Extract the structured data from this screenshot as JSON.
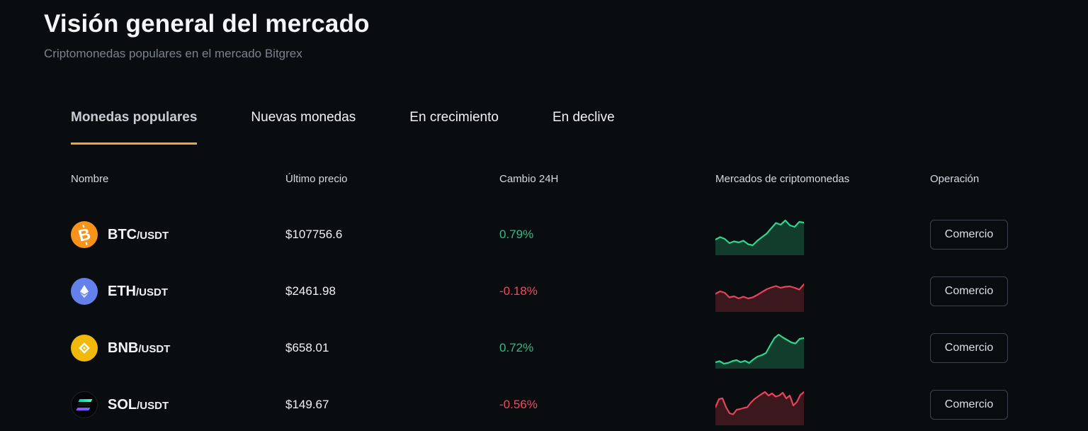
{
  "page": {
    "title": "Visión general del mercado",
    "subtitle": "Criptomonedas populares en el mercado Bitgrex"
  },
  "tabs": [
    {
      "label": "Monedas populares",
      "active": true
    },
    {
      "label": "Nuevas monedas",
      "active": false
    },
    {
      "label": "En crecimiento",
      "active": false
    },
    {
      "label": "En declive",
      "active": false
    }
  ],
  "table": {
    "headers": [
      "Nombre",
      "Último precio",
      "Cambio 24H",
      "Mercados de criptomonedas",
      "Operación"
    ],
    "rows": [
      {
        "symbol": "BTC",
        "quote": "/USDT",
        "price": "$107756.6",
        "change": "0.79%",
        "trend": "up",
        "action": "Comercio",
        "icon": "btc-icon"
      },
      {
        "symbol": "ETH",
        "quote": "/USDT",
        "price": "$2461.98",
        "change": "-0.18%",
        "trend": "down",
        "action": "Comercio",
        "icon": "eth-icon"
      },
      {
        "symbol": "BNB",
        "quote": "/USDT",
        "price": "$658.01",
        "change": "0.72%",
        "trend": "up",
        "action": "Comercio",
        "icon": "bnb-icon"
      },
      {
        "symbol": "SOL",
        "quote": "/USDT",
        "price": "$149.67",
        "change": "-0.56%",
        "trend": "down",
        "action": "Comercio",
        "icon": "sol-icon"
      }
    ]
  },
  "colors": {
    "accent": "#F0A63C",
    "up": "#2EBD85",
    "down": "#F6465D",
    "icon_btc": "#F7931A",
    "icon_eth": "#6480EA",
    "icon_bnb": "#F0B90B",
    "icon_sol": "#040507"
  },
  "chart_data": [
    {
      "type": "area",
      "name": "BTC/USDT 24h sparkline",
      "trend": "up",
      "line_color": "#2FD690",
      "fill_color": "#123C2B",
      "values": [
        38,
        45,
        40,
        28,
        33,
        30,
        35,
        25,
        22,
        35,
        45,
        55,
        70,
        85,
        80,
        92,
        78,
        74,
        88,
        86
      ]
    },
    {
      "type": "area",
      "name": "ETH/USDT 24h sparkline",
      "trend": "down",
      "line_color": "#E8435A",
      "fill_color": "#3A181D",
      "values": [
        45,
        52,
        48,
        35,
        38,
        32,
        37,
        32,
        35,
        42,
        50,
        58,
        63,
        67,
        62,
        65,
        66,
        62,
        57,
        72
      ]
    },
    {
      "type": "area",
      "name": "BNB/USDT 24h sparkline",
      "trend": "up",
      "line_color": "#2FD690",
      "fill_color": "#123C2B",
      "values": [
        12,
        15,
        8,
        10,
        15,
        18,
        12,
        16,
        10,
        20,
        28,
        32,
        38,
        60,
        80,
        90,
        82,
        75,
        68,
        65,
        78,
        80
      ]
    },
    {
      "type": "area",
      "name": "SOL/USDT 24h sparkline",
      "trend": "down",
      "line_color": "#E8435A",
      "fill_color": "#3A181D",
      "values": [
        45,
        68,
        70,
        45,
        28,
        25,
        38,
        40,
        43,
        45,
        58,
        68,
        75,
        82,
        88,
        78,
        84,
        75,
        78,
        86,
        70,
        78,
        50,
        60,
        80,
        88
      ]
    }
  ]
}
